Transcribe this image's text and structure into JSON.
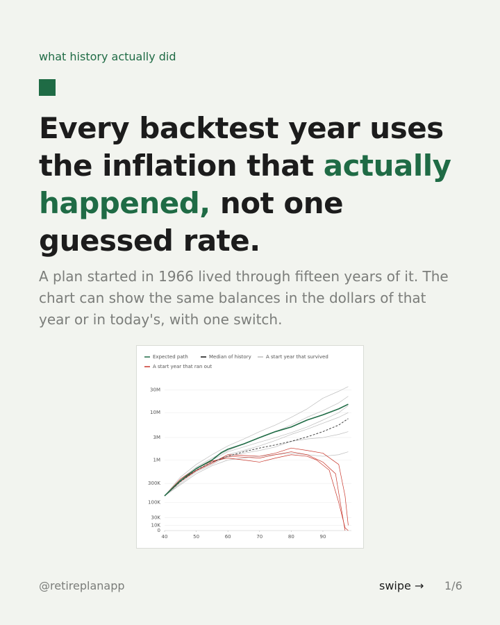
{
  "kicker": "what history actually did",
  "headline": {
    "parts": [
      {
        "text": "Every backtest year uses the inflation that "
      },
      {
        "text": "actually happened,",
        "highlight": true
      },
      {
        "text": " not one guessed rate."
      }
    ]
  },
  "lede": "A plan started in 1966 lived through fifteen years of it. The chart can show the same balances in the dollars of that year or in today's, with one switch.",
  "chart_data": {
    "type": "line",
    "yscale": "symlog",
    "grid": true,
    "xlim": [
      40,
      99
    ],
    "xticks": [
      40,
      50,
      60,
      70,
      80,
      90
    ],
    "ylim": [
      0,
      50000000
    ],
    "yticks": [
      0,
      {
        "value": 10000,
        "label": "10K"
      },
      {
        "value": 30000,
        "label": "30K"
      },
      {
        "value": 100000,
        "label": "100K"
      },
      {
        "value": 300000,
        "label": "300K"
      },
      {
        "value": 1000000,
        "label": "1M"
      },
      {
        "value": 3000000,
        "label": "3M"
      },
      {
        "value": 10000000,
        "label": "10M"
      },
      {
        "value": 30000000,
        "label": "30M"
      }
    ],
    "series": [
      {
        "name": "A start year that survived",
        "color": "#bdbdbd",
        "lines": [
          {
            "x": [
              40,
              45,
              50,
              55,
              60,
              65,
              70,
              75,
              80,
              85,
              90,
              95,
              98
            ],
            "values": [
              150000,
              420000,
              800000,
              1300000,
              2000000,
              2800000,
              4000000,
              5500000,
              8000000,
              12000000,
              20000000,
              28000000,
              35000000
            ]
          },
          {
            "x": [
              40,
              45,
              50,
              55,
              60,
              65,
              70,
              75,
              80,
              85,
              90,
              95,
              98
            ],
            "values": [
              150000,
              380000,
              700000,
              1100000,
              1600000,
              2200000,
              3000000,
              4000000,
              5500000,
              8000000,
              11000000,
              16000000,
              22000000
            ]
          },
          {
            "x": [
              40,
              45,
              50,
              55,
              60,
              65,
              70,
              75,
              80,
              85,
              90,
              95,
              98
            ],
            "values": [
              150000,
              330000,
              600000,
              900000,
              1300000,
              1600000,
              2000000,
              2600000,
              3500000,
              4500000,
              6000000,
              8000000,
              10000000
            ]
          },
          {
            "x": [
              40,
              45,
              50,
              55,
              60,
              65,
              70,
              75,
              80,
              85,
              90,
              95,
              98
            ],
            "values": [
              150000,
              300000,
              550000,
              800000,
              1200000,
              1400000,
              1600000,
              1900000,
              2500000,
              2800000,
              3000000,
              3500000,
              4000000
            ]
          },
          {
            "x": [
              40,
              45,
              50,
              55,
              60,
              65,
              70,
              75,
              80,
              85,
              90,
              95,
              98
            ],
            "values": [
              150000,
              280000,
              500000,
              750000,
              1000000,
              1100000,
              1200000,
              1300000,
              1400000,
              1300000,
              1200000,
              1300000,
              1500000
            ]
          },
          {
            "x": [
              40,
              45,
              50,
              55,
              60,
              65,
              70,
              75,
              80,
              85,
              90,
              95,
              98
            ],
            "values": [
              150000,
              350000,
              650000,
              1000000,
              1500000,
              1900000,
              2400000,
              3000000,
              3800000,
              5000000,
              7000000,
              10000000,
              14000000
            ]
          }
        ]
      },
      {
        "name": "A start year that ran out",
        "color": "#c8352a",
        "lines": [
          {
            "x": [
              40,
              45,
              50,
              55,
              60,
              65,
              70,
              75,
              80,
              85,
              90,
              94,
              96,
              97
            ],
            "values": [
              150000,
              350000,
              600000,
              900000,
              1200000,
              1150000,
              1100000,
              1300000,
              1500000,
              1300000,
              900000,
              500000,
              50000,
              0
            ]
          },
          {
            "x": [
              40,
              45,
              50,
              55,
              60,
              65,
              70,
              75,
              80,
              85,
              88,
              92,
              95,
              97,
              98
            ],
            "values": [
              150000,
              380000,
              650000,
              950000,
              1100000,
              1000000,
              900000,
              1100000,
              1300000,
              1200000,
              1000000,
              600000,
              100000,
              5000,
              0
            ]
          },
          {
            "x": [
              40,
              45,
              50,
              55,
              60,
              65,
              70,
              75,
              80,
              85,
              90,
              95,
              97,
              98
            ],
            "values": [
              150000,
              330000,
              580000,
              850000,
              1300000,
              1250000,
              1200000,
              1400000,
              1800000,
              1600000,
              1400000,
              800000,
              150000,
              10000
            ]
          }
        ]
      },
      {
        "name": "Median of history",
        "color": "#444444",
        "dashed": true,
        "lines": [
          {
            "x": [
              40,
              45,
              50,
              55,
              60,
              65,
              70,
              75,
              80,
              85,
              90,
              95,
              98
            ],
            "values": [
              150000,
              330000,
              600000,
              900000,
              1200000,
              1500000,
              1800000,
              2100000,
              2500000,
              3100000,
              4000000,
              5500000,
              7500000
            ]
          }
        ]
      },
      {
        "name": "Expected path",
        "color": "#1f6b45",
        "lines": [
          {
            "x": [
              40,
              45,
              50,
              55,
              58,
              60,
              65,
              70,
              75,
              80,
              85,
              90,
              95,
              98
            ],
            "values": [
              150000,
              350000,
              650000,
              1000000,
              1450000,
              1700000,
              2200000,
              3000000,
              4000000,
              5000000,
              7000000,
              9000000,
              12000000,
              15000000
            ]
          }
        ]
      }
    ],
    "legend_order": [
      "Expected path",
      "Median of history",
      "A start year that survived",
      "A start year that ran out"
    ]
  },
  "footer": {
    "handle": "@retireplanapp",
    "swipe": "swipe →",
    "pager": "1/6"
  }
}
